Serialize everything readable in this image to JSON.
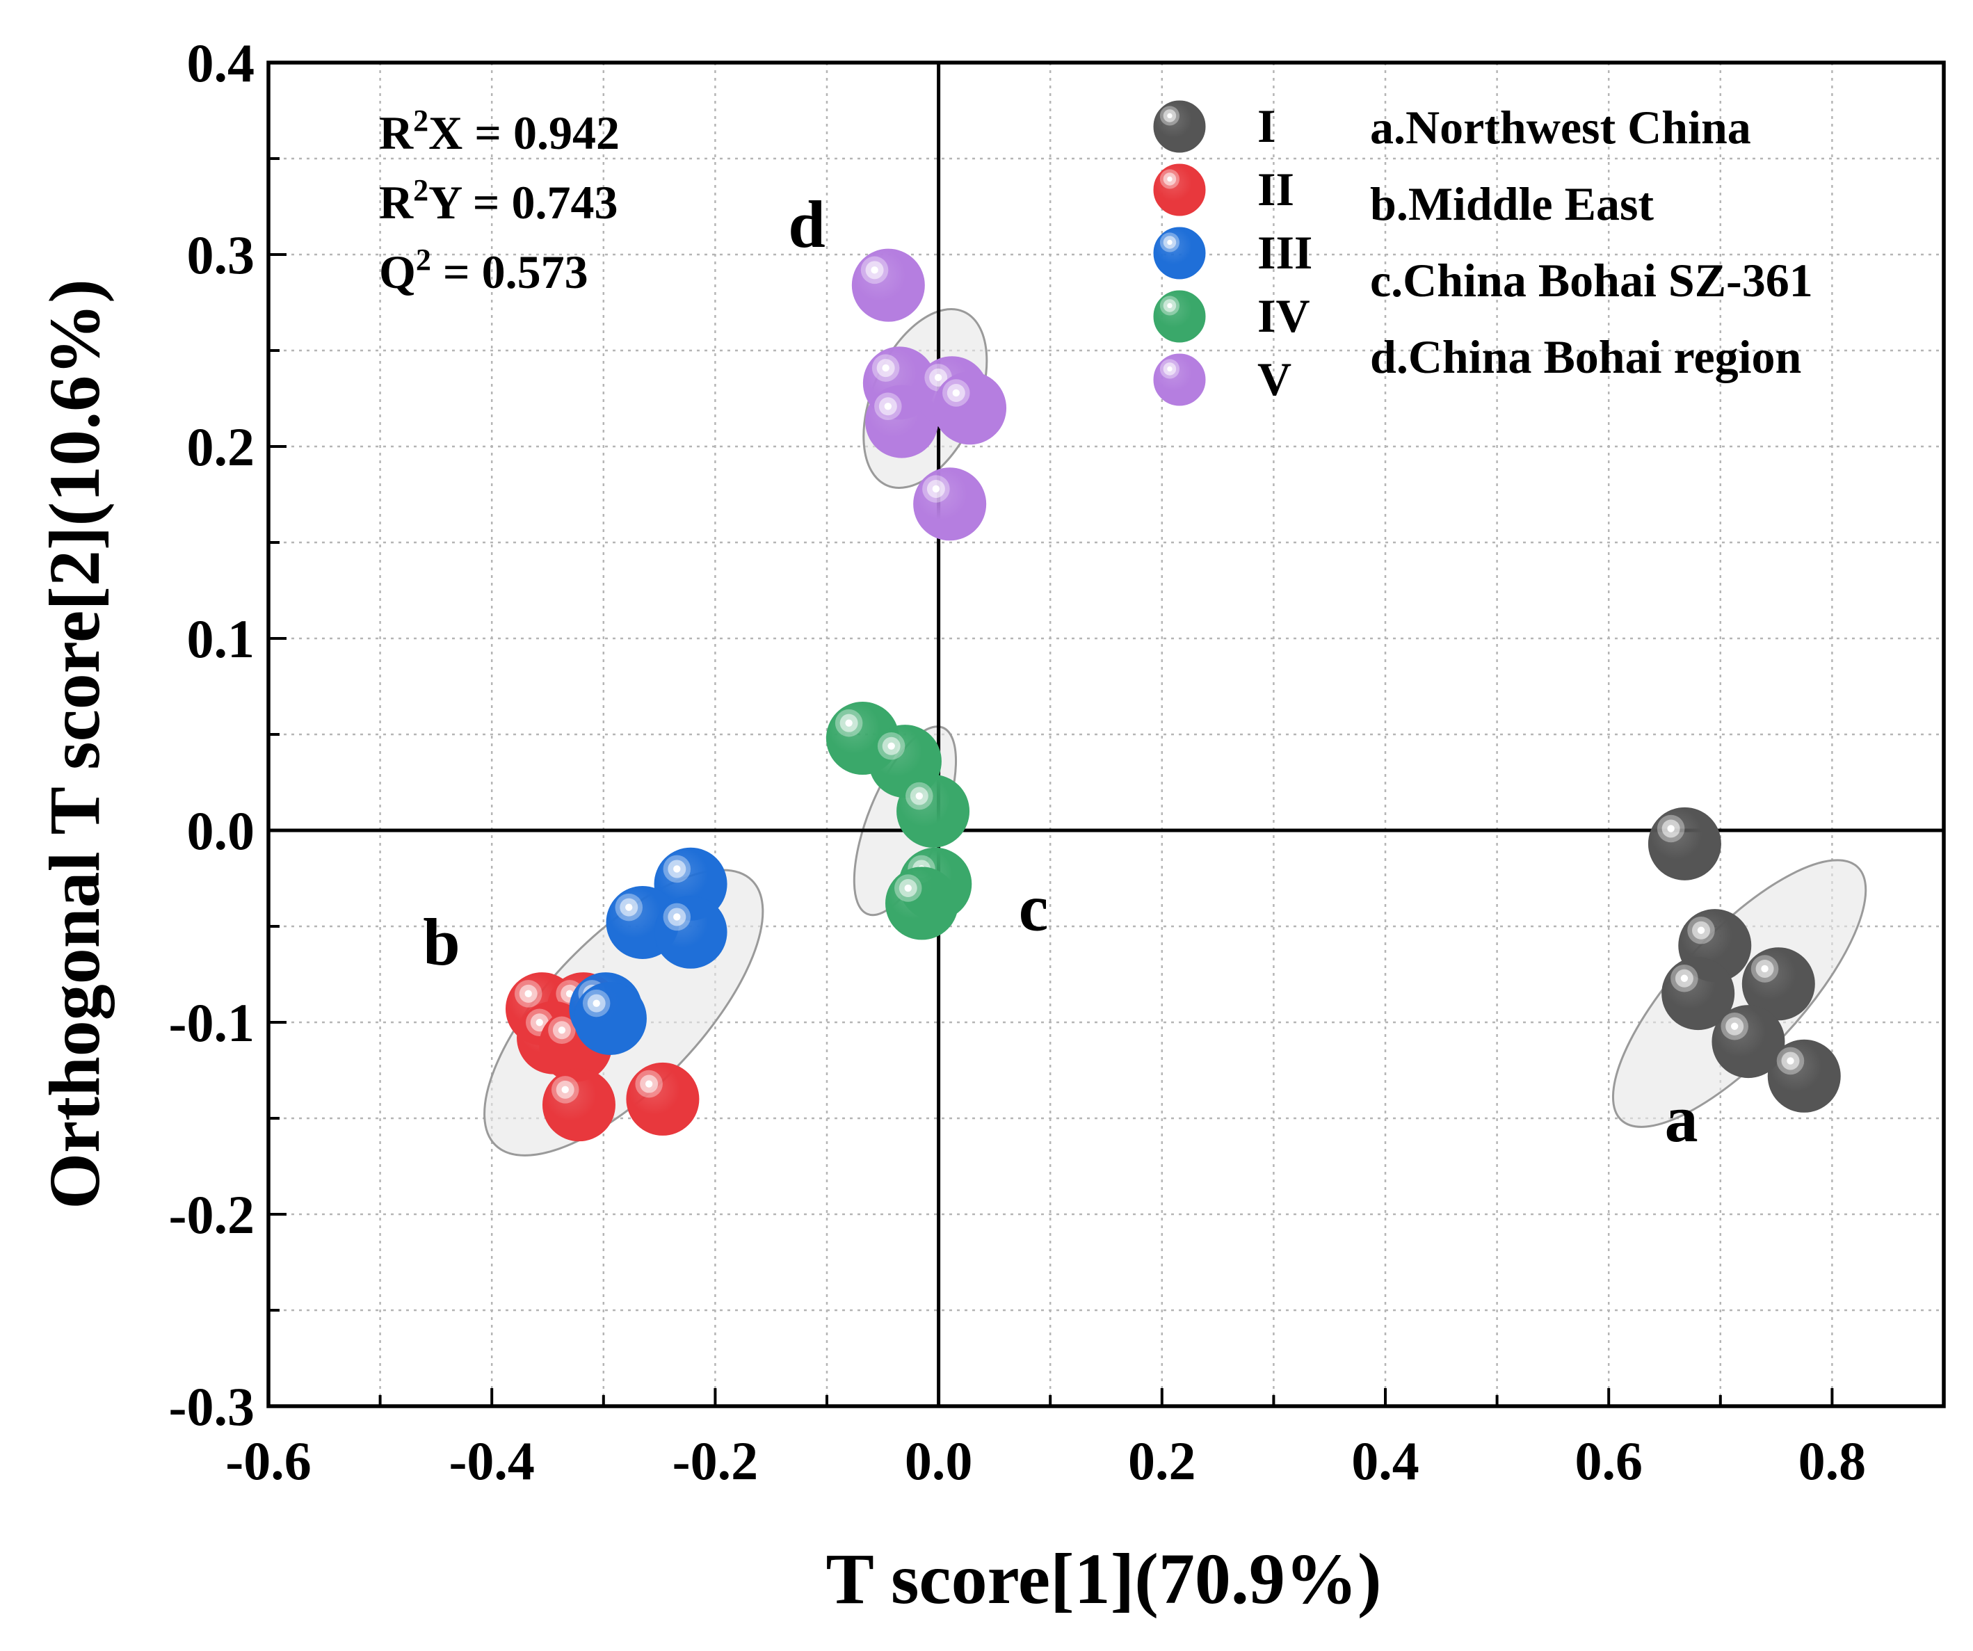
{
  "chart_data": {
    "type": "scatter",
    "xlabel": "T score[1](70.9%)",
    "ylabel": "Orthogonal T score[2](10.6%)",
    "xlim": [
      -0.6,
      0.9
    ],
    "ylim": [
      -0.3,
      0.4
    ],
    "x_ticks": [
      "-0.6",
      "-0.4",
      "-0.2",
      "0.0",
      "0.2",
      "0.4",
      "0.6",
      "0.8"
    ],
    "y_ticks": [
      "0.4",
      "0.3",
      "0.2",
      "0.1",
      "0.0",
      "-0.1",
      "-0.2",
      "-0.3"
    ],
    "grid": true,
    "stats": [
      {
        "prefix": "R",
        "sup": "2",
        "rest": "X = 0.942"
      },
      {
        "prefix": "R",
        "sup": "2",
        "rest": "Y = 0.743"
      },
      {
        "prefix": "Q",
        "sup": "2",
        "rest": " = 0.573"
      }
    ],
    "series": [
      {
        "name": "I",
        "color": "#555555",
        "points": [
          [
            0.668,
            -0.007
          ],
          [
            0.695,
            -0.06
          ],
          [
            0.752,
            -0.08
          ],
          [
            0.68,
            -0.085
          ],
          [
            0.725,
            -0.11
          ],
          [
            0.775,
            -0.128
          ]
        ]
      },
      {
        "name": "II",
        "color": "#e8383d",
        "points": [
          [
            -0.355,
            -0.093
          ],
          [
            -0.318,
            -0.093
          ],
          [
            -0.345,
            -0.108
          ],
          [
            -0.325,
            -0.112
          ],
          [
            -0.322,
            -0.143
          ],
          [
            -0.247,
            -0.14
          ]
        ]
      },
      {
        "name": "III",
        "color": "#1f6fd8",
        "points": [
          [
            -0.222,
            -0.028
          ],
          [
            -0.265,
            -0.048
          ],
          [
            -0.222,
            -0.053
          ],
          [
            -0.298,
            -0.093
          ],
          [
            -0.294,
            -0.098
          ]
        ]
      },
      {
        "name": "IV",
        "color": "#3aa86a",
        "points": [
          [
            -0.068,
            0.048
          ],
          [
            -0.03,
            0.036
          ],
          [
            -0.005,
            0.01
          ],
          [
            -0.003,
            -0.028
          ],
          [
            -0.015,
            -0.038
          ]
        ]
      },
      {
        "name": "V",
        "color": "#b57ee0",
        "points": [
          [
            -0.045,
            0.284
          ],
          [
            -0.035,
            0.233
          ],
          [
            -0.033,
            0.213
          ],
          [
            0.012,
            0.228
          ],
          [
            0.028,
            0.22
          ],
          [
            0.01,
            0.17
          ]
        ]
      }
    ],
    "legend": {
      "placement": "top-right",
      "markers": [
        "I",
        "II",
        "III",
        "IV",
        "V"
      ],
      "regions": [
        "a.Northwest China",
        "b.Middle East",
        "c.China Bohai SZ-361",
        "d.China Bohai region"
      ]
    },
    "groups": [
      {
        "label": "a",
        "at": [
          0.665,
          -0.162
        ],
        "ellipse": {
          "cx": 0.717,
          "cy": -0.085,
          "rx": 0.155,
          "ry": 0.055,
          "angle_deg": -47
        }
      },
      {
        "label": "b",
        "at": [
          -0.445,
          -0.07
        ],
        "ellipse": {
          "cx": -0.282,
          "cy": -0.095,
          "rx": 0.165,
          "ry": 0.068,
          "angle_deg": -46
        }
      },
      {
        "label": "c",
        "at": [
          0.085,
          -0.052
        ],
        "ellipse": {
          "cx": -0.03,
          "cy": 0.005,
          "rx": 0.09,
          "ry": 0.033,
          "angle_deg": -68
        }
      },
      {
        "label": "d",
        "at": [
          -0.118,
          0.304
        ],
        "ellipse": {
          "cx": -0.012,
          "cy": 0.225,
          "rx": 0.085,
          "ry": 0.047,
          "angle_deg": -66
        }
      }
    ]
  }
}
